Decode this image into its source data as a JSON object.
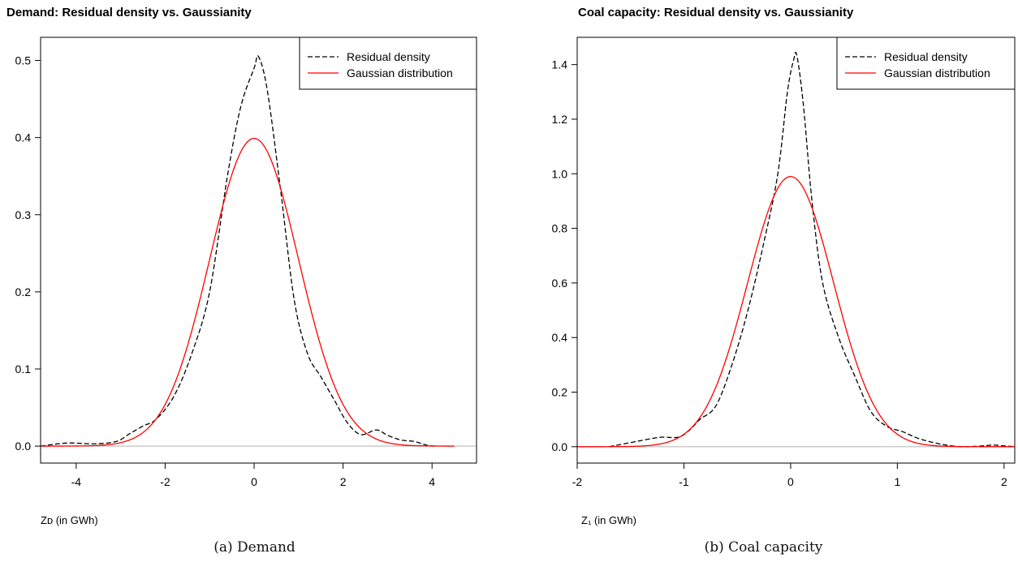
{
  "chart_data": [
    {
      "type": "line",
      "title": "Demand: Residual density vs. Gaussianity",
      "xlabel": "Zᴅ (in GWh)",
      "ylabel": "",
      "caption": "(a) Demand",
      "xlim": [
        -4.8,
        5.0
      ],
      "ylim": [
        -0.022,
        0.53
      ],
      "xticks": [
        -4,
        -2,
        0,
        2,
        4
      ],
      "yticks": [
        0.0,
        0.1,
        0.2,
        0.3,
        0.4,
        0.5
      ],
      "ytick_labels": [
        "0.0",
        "0.1",
        "0.2",
        "0.3",
        "0.4",
        "0.5"
      ],
      "grid": false,
      "legend_position": "top-right",
      "baseline": 0,
      "series": [
        {
          "name": "Residual density",
          "style": "dashed",
          "color": "#000000",
          "x": [
            -4.8,
            -4.2,
            -3.6,
            -3.1,
            -2.8,
            -2.5,
            -2.2,
            -1.8,
            -1.4,
            -1.0,
            -0.6,
            -0.3,
            0.0,
            0.1,
            0.3,
            0.6,
            0.9,
            1.2,
            1.5,
            1.8,
            2.1,
            2.4,
            2.75,
            3.0,
            3.3,
            3.6,
            3.9,
            4.1
          ],
          "y": [
            0.0,
            0.004,
            0.003,
            0.006,
            0.016,
            0.026,
            0.035,
            0.065,
            0.12,
            0.2,
            0.35,
            0.44,
            0.49,
            0.505,
            0.46,
            0.33,
            0.19,
            0.12,
            0.09,
            0.06,
            0.03,
            0.015,
            0.021,
            0.014,
            0.008,
            0.006,
            0.001,
            0.0
          ]
        },
        {
          "name": "Gaussian distribution",
          "style": "solid",
          "color": "#ff0000",
          "distribution": "normal",
          "mean": 0,
          "sd": 1,
          "x_range": [
            -4.8,
            4.5
          ]
        }
      ]
    },
    {
      "type": "line",
      "title": "Coal capacity: Residual density vs. Gaussianity",
      "xlabel": "Z₁ (in GWh)",
      "ylabel": "",
      "caption": "(b) Coal capacity",
      "xlim": [
        -2.0,
        2.1
      ],
      "ylim": [
        -0.06,
        1.5
      ],
      "xticks": [
        -2,
        -1,
        0,
        1,
        2
      ],
      "yticks": [
        0.0,
        0.2,
        0.4,
        0.6,
        0.8,
        1.0,
        1.2,
        1.4
      ],
      "ytick_labels": [
        "0.0",
        "0.2",
        "0.4",
        "0.6",
        "0.8",
        "1.0",
        "1.2",
        "1.4"
      ],
      "grid": false,
      "legend_position": "top-right",
      "baseline": 0,
      "series": [
        {
          "name": "Residual density",
          "style": "dashed",
          "color": "#000000",
          "x": [
            -1.7,
            -1.5,
            -1.3,
            -1.2,
            -1.05,
            -0.95,
            -0.85,
            -0.7,
            -0.55,
            -0.4,
            -0.25,
            -0.12,
            -0.03,
            0.03,
            0.06,
            0.12,
            0.2,
            0.3,
            0.45,
            0.6,
            0.75,
            0.9,
            1.05,
            1.2,
            1.4,
            1.6,
            1.8,
            1.9,
            2.0,
            2.1
          ],
          "y": [
            0.0,
            0.015,
            0.03,
            0.035,
            0.035,
            0.06,
            0.1,
            0.15,
            0.3,
            0.5,
            0.75,
            1.0,
            1.3,
            1.42,
            1.43,
            1.25,
            0.9,
            0.6,
            0.4,
            0.26,
            0.13,
            0.075,
            0.055,
            0.03,
            0.01,
            0.0,
            0.003,
            0.006,
            0.003,
            0.0
          ]
        },
        {
          "name": "Gaussian distribution",
          "style": "solid",
          "color": "#ff0000",
          "distribution": "normal",
          "mean": 0,
          "sd": 0.403,
          "x_range": [
            -2.0,
            2.1
          ]
        }
      ]
    }
  ]
}
